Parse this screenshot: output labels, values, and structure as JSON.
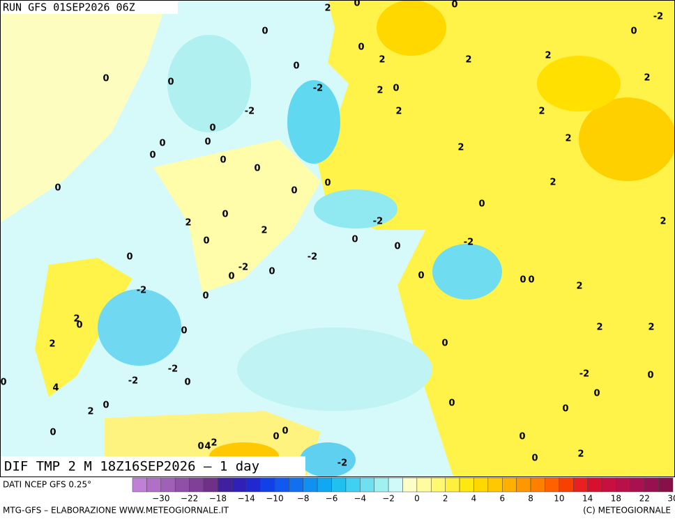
{
  "header": {
    "run": "RUN GFS 01SEP2026 06Z",
    "title": "DIF TMP 2 M 18Z16SEP2026 – 1 day"
  },
  "map": {
    "contour_labels": [
      "2",
      "0",
      "0",
      "-2",
      "0",
      "0",
      "0",
      "2",
      "2",
      "2",
      "0",
      "0",
      "0",
      "-2",
      "2",
      "0",
      "2",
      "-2",
      "2",
      "2",
      "0",
      "0",
      "0",
      "2",
      "2",
      "0",
      "0",
      "0",
      "0",
      "0",
      "0",
      "2",
      "0",
      "0",
      "2",
      "-2",
      "2",
      "2",
      "0",
      "0",
      "-2",
      "0",
      "0",
      "-2",
      "-2",
      "0",
      "0",
      "0",
      "0",
      "0",
      "-2",
      "2",
      "0",
      "2",
      "0",
      "2",
      "2",
      "0",
      "2",
      "0",
      "-2",
      "-2",
      "0",
      "-2",
      "0",
      "0",
      "4",
      "0",
      "0",
      "0",
      "2",
      "0",
      "0",
      "0",
      "0",
      "0",
      "0",
      "4",
      "2",
      "-2",
      "0",
      "2"
    ]
  },
  "legend": {
    "source": "DATI NCEP GFS 0.25°",
    "colors": [
      "#c080d8",
      "#b070c8",
      "#a060b8",
      "#9050a8",
      "#804098",
      "#703088",
      "#4020a0",
      "#3020b8",
      "#2028d0",
      "#1040e8",
      "#1058f0",
      "#1070f0",
      "#1090f0",
      "#10a8f0",
      "#20c0f0",
      "#40d0f0",
      "#70e0f0",
      "#a0f0f0",
      "#d0fafa",
      "#ffffc8",
      "#fffca0",
      "#fff870",
      "#fff040",
      "#ffe810",
      "#ffd800",
      "#ffc800",
      "#ffb000",
      "#ff9800",
      "#ff8000",
      "#ff6000",
      "#f84000",
      "#e82020",
      "#d81030",
      "#c81040",
      "#b81048",
      "#a81050",
      "#981050",
      "#881048"
    ],
    "labels": [
      "−30",
      "−22",
      "−18",
      "−14",
      "−10",
      "−8",
      "−6",
      "−4",
      "−2",
      "0",
      "2",
      "4",
      "6",
      "8",
      "10",
      "14",
      "18",
      "22",
      "30"
    ]
  },
  "footer": {
    "left": "MTG-GFS – ELABORAZIONE WWW.METEOGIORNALE.IT",
    "right": "(C) METEOGIORNALE"
  }
}
